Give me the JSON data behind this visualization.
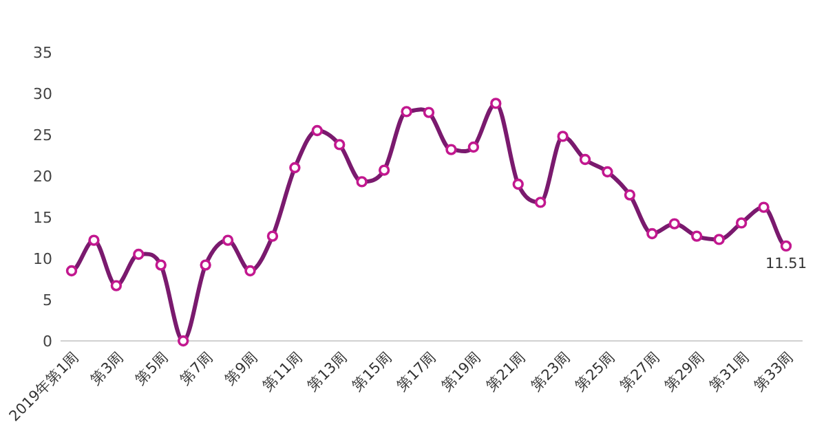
{
  "chart_data": {
    "type": "line",
    "categories": [
      "2019年第1周",
      null,
      "第3周",
      null,
      "第5周",
      null,
      "第7周",
      null,
      "第9周",
      null,
      "第11周",
      null,
      "第13周",
      null,
      "第15周",
      null,
      "第17周",
      null,
      "第19周",
      null,
      "第21周",
      null,
      "第23周",
      null,
      "第25周",
      null,
      "第27周",
      null,
      "第29周",
      null,
      "第31周",
      null,
      "第33周"
    ],
    "series": [
      {
        "color": "#7a1a6e",
        "values": [
          8.5,
          12.2,
          6.7,
          10.5,
          9.2,
          0,
          9.2,
          12.2,
          8.5,
          12.7,
          21,
          25.5,
          23.8,
          19.3,
          20.7,
          27.8,
          27.7,
          23.2,
          23.5,
          28.8,
          19,
          16.8,
          24.8,
          22,
          20.5,
          17.7,
          13,
          14.2,
          12.7,
          12.3,
          14.3,
          16.2,
          11.51
        ],
        "value_labels": [
          null,
          null,
          null,
          null,
          null,
          null,
          null,
          null,
          null,
          null,
          null,
          null,
          null,
          null,
          null,
          null,
          null,
          null,
          null,
          null,
          null,
          null,
          null,
          null,
          null,
          null,
          null,
          null,
          null,
          null,
          null,
          null,
          "11.51"
        ]
      }
    ],
    "ylim": [
      0,
      35
    ],
    "yticks": [
      0,
      5,
      10,
      15,
      20,
      25,
      30,
      35
    ],
    "grid": false,
    "marker": "circle"
  }
}
